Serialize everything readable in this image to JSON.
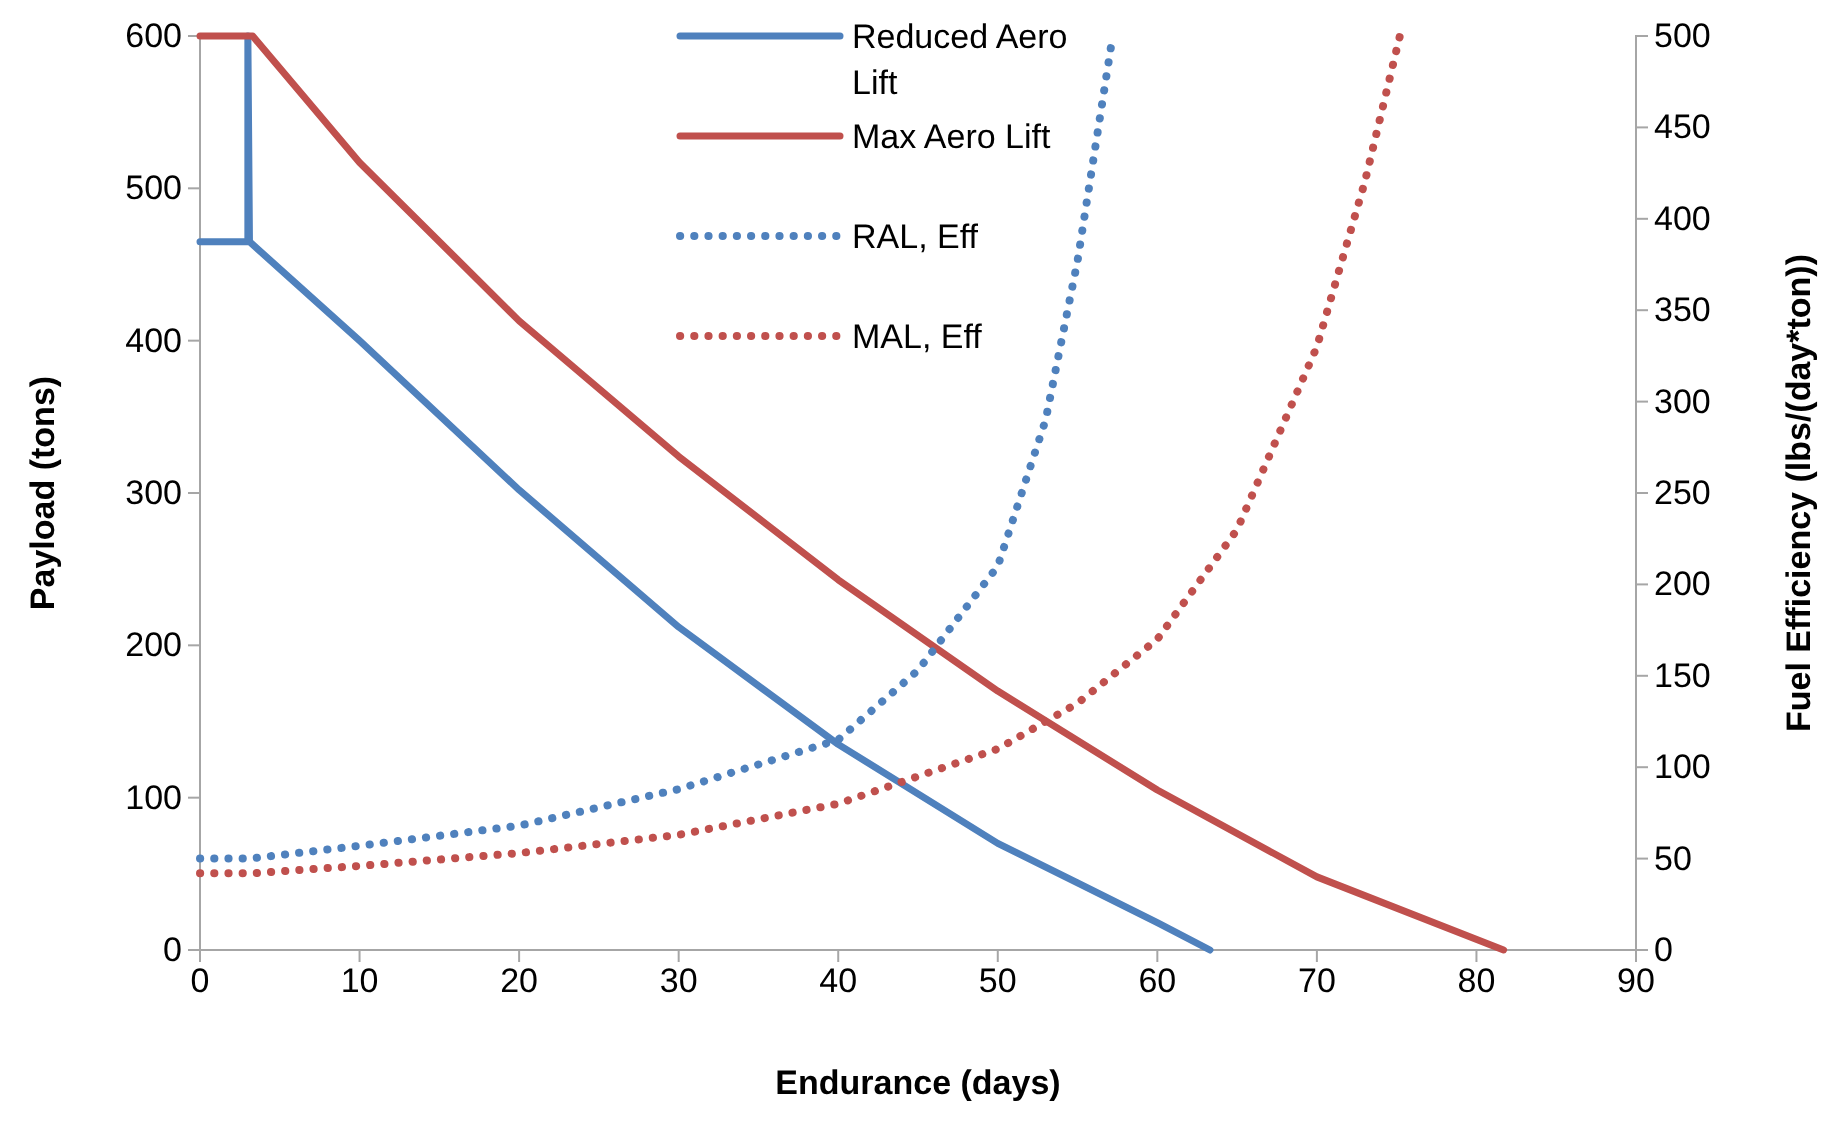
{
  "chart_data": {
    "type": "line",
    "xlabel": "Endurance (days)",
    "ylabel": "Payload (tons)",
    "y2label": "Fuel Efficiency (lbs/(day*ton))",
    "xlim": [
      0,
      90
    ],
    "xticks": [
      0,
      10,
      20,
      30,
      40,
      50,
      60,
      70,
      80,
      90
    ],
    "ylim": [
      0,
      600
    ],
    "yticks": [
      0,
      100,
      200,
      300,
      400,
      500,
      600
    ],
    "y2lim": [
      0,
      500
    ],
    "y2ticks": [
      0,
      50,
      100,
      150,
      200,
      250,
      300,
      350,
      400,
      450,
      500
    ],
    "grid": false,
    "legend": "top",
    "marker": "none",
    "series": [
      {
        "name": "Reduced Aero Lift",
        "color": "#4f81bd",
        "line_style": "solid",
        "x": [
          0,
          3,
          3,
          3.1,
          10,
          20,
          30,
          40,
          50,
          55,
          60,
          63.3
        ],
        "values": [
          465,
          465,
          600,
          465,
          400,
          302,
          212,
          135,
          70,
          44,
          18,
          0
        ]
      },
      {
        "name": "Max Aero Lift",
        "color": "#c0504d",
        "line_style": "solid",
        "x": [
          0,
          3.3,
          10,
          20,
          30,
          40,
          50,
          60,
          70,
          81.7
        ],
        "values": [
          600,
          600,
          517,
          413,
          324,
          243,
          170,
          105,
          48,
          0
        ]
      },
      {
        "name": "RAL, Eff",
        "color": "#4f81bd",
        "line_style": "dotted",
        "axis": "y2",
        "x": [
          0,
          3.1,
          10,
          20,
          30,
          40,
          45,
          50,
          53,
          55,
          57.2
        ],
        "values": [
          50,
          50,
          57,
          68,
          88,
          115,
          153,
          210,
          290,
          377,
          500
        ]
      },
      {
        "name": "MAL, Eff",
        "color": "#c0504d",
        "line_style": "dotted",
        "axis": "y2",
        "x": [
          0,
          3.3,
          10,
          20,
          30,
          40,
          50,
          55,
          60,
          65,
          70,
          73,
          75.2
        ],
        "values": [
          42,
          42,
          46,
          53,
          63,
          80,
          110,
          135,
          170,
          230,
          330,
          420,
          500
        ]
      }
    ]
  }
}
